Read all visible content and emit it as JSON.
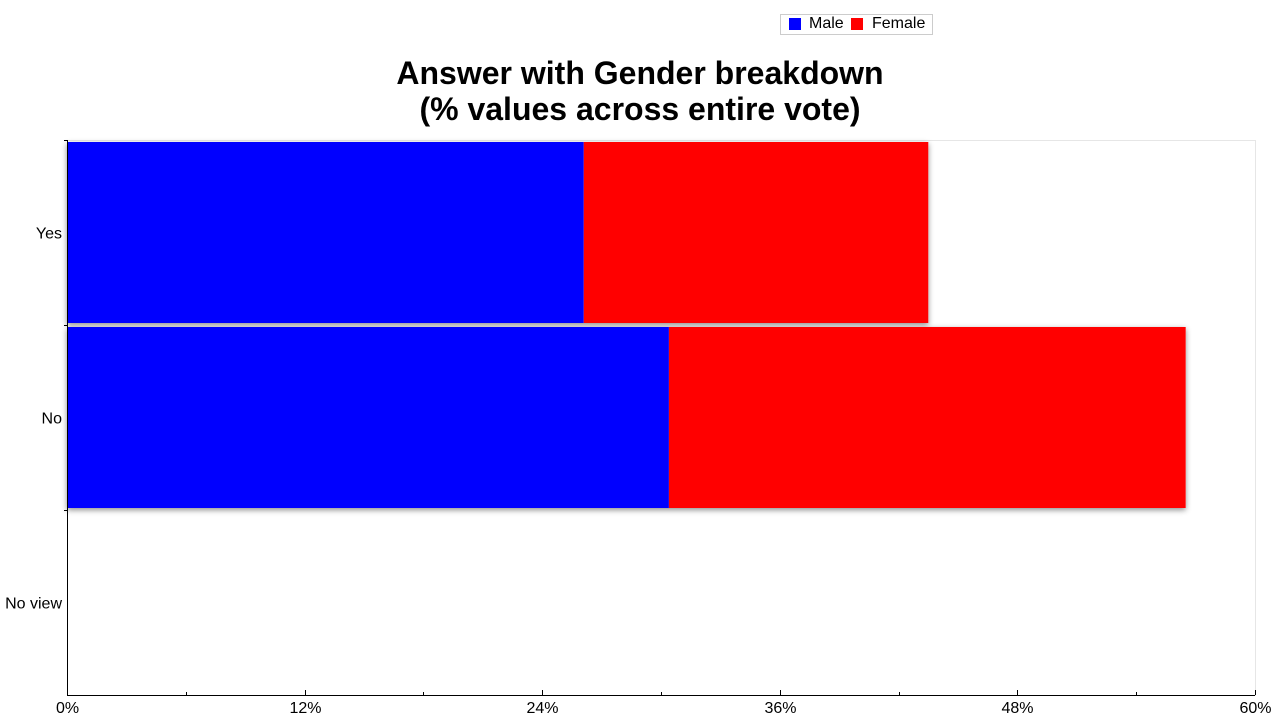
{
  "chart_data": {
    "type": "bar",
    "orientation": "horizontal",
    "stacked": true,
    "title": [
      "Answer with Gender breakdown",
      "(% values across entire vote)"
    ],
    "categories": [
      "Yes",
      "No",
      "No view"
    ],
    "series": [
      {
        "name": "Male",
        "color": "#0000ff",
        "values": [
          26.1,
          30.4,
          0
        ]
      },
      {
        "name": "Female",
        "color": "#ff0000",
        "values": [
          17.4,
          26.1,
          0
        ]
      }
    ],
    "xlim": [
      0,
      60
    ],
    "x_ticks": [
      "0%",
      "12%",
      "24%",
      "36%",
      "48%",
      "60%"
    ],
    "legend_position": "top-right",
    "grid": false
  }
}
